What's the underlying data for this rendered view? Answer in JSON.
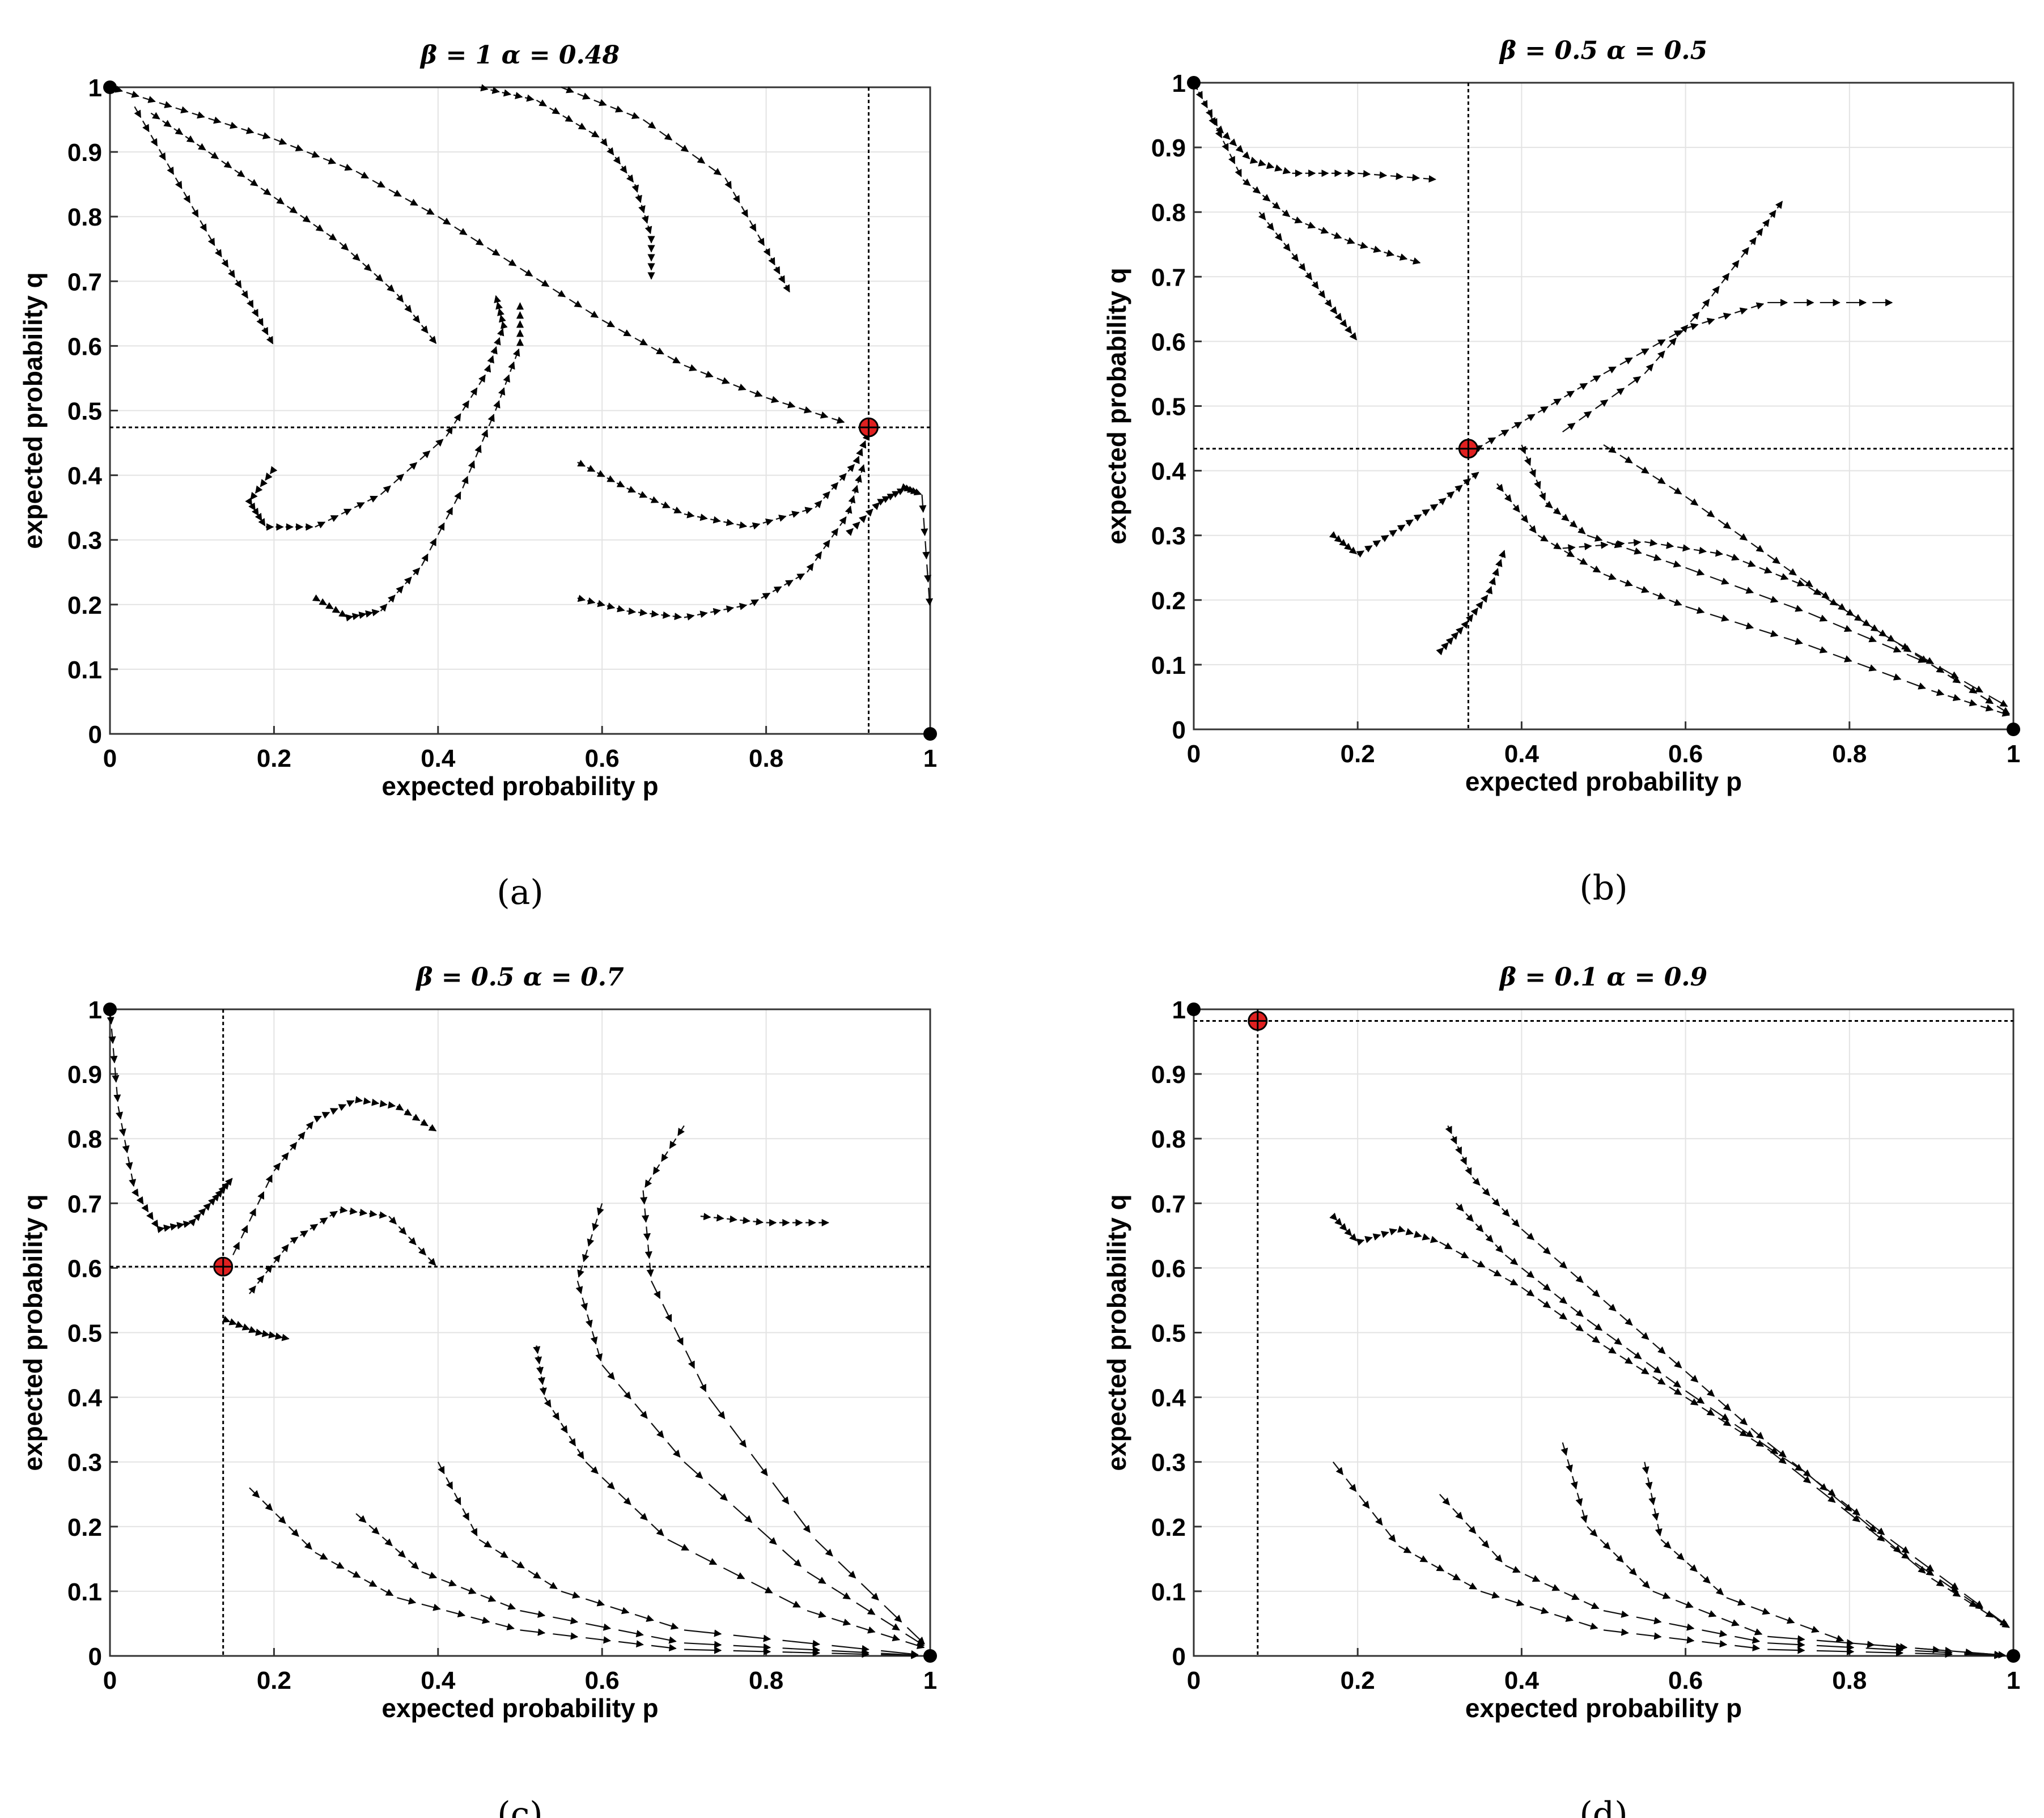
{
  "figure": {
    "panels_note": "four phase-portrait vector field panels"
  },
  "chart_data": [
    {
      "type": "scatter",
      "panel": "a",
      "title": "β = 1 α = 0.48",
      "xlabel": "expected probability p",
      "ylabel": "expected probability q",
      "xlim": [
        0,
        1
      ],
      "ylim": [
        0,
        1
      ],
      "xticks": [
        "0",
        "0.2",
        "0.4",
        "0.6",
        "0.8",
        "1"
      ],
      "yticks": [
        "0",
        "0.1",
        "0.2",
        "0.3",
        "0.4",
        "0.5",
        "0.6",
        "0.7",
        "0.8",
        "0.9",
        "1"
      ],
      "grid": true,
      "caption": "(a)",
      "equilibrium": {
        "p": 0.925,
        "q": 0.474
      },
      "stable_points": [
        {
          "p": 0,
          "q": 1
        },
        {
          "p": 1,
          "q": 0
        }
      ],
      "trajectories": [
        [
          [
            0.0,
            1.0
          ],
          [
            0.1,
            0.96
          ],
          [
            0.2,
            0.92
          ],
          [
            0.3,
            0.87
          ],
          [
            0.4,
            0.8
          ],
          [
            0.5,
            0.72
          ],
          [
            0.6,
            0.64
          ],
          [
            0.7,
            0.57
          ],
          [
            0.8,
            0.52
          ],
          [
            0.9,
            0.48
          ]
        ],
        [
          [
            0.03,
            0.97
          ],
          [
            0.08,
            0.86
          ],
          [
            0.13,
            0.75
          ],
          [
            0.17,
            0.67
          ],
          [
            0.2,
            0.6
          ]
        ],
        [
          [
            0.05,
            0.96
          ],
          [
            0.12,
            0.9
          ],
          [
            0.2,
            0.83
          ],
          [
            0.28,
            0.76
          ],
          [
            0.35,
            0.68
          ],
          [
            0.4,
            0.6
          ]
        ],
        [
          [
            0.45,
            1.0
          ],
          [
            0.52,
            0.98
          ],
          [
            0.6,
            0.92
          ],
          [
            0.64,
            0.85
          ],
          [
            0.66,
            0.77
          ],
          [
            0.66,
            0.7
          ]
        ],
        [
          [
            0.55,
            1.0
          ],
          [
            0.65,
            0.95
          ],
          [
            0.75,
            0.86
          ],
          [
            0.8,
            0.75
          ],
          [
            0.83,
            0.68
          ]
        ],
        [
          [
            0.2,
            0.41
          ],
          [
            0.17,
            0.36
          ],
          [
            0.19,
            0.32
          ],
          [
            0.25,
            0.32
          ],
          [
            0.33,
            0.37
          ],
          [
            0.41,
            0.46
          ],
          [
            0.46,
            0.56
          ],
          [
            0.48,
            0.63
          ],
          [
            0.47,
            0.68
          ]
        ],
        [
          [
            0.25,
            0.21
          ],
          [
            0.29,
            0.18
          ],
          [
            0.33,
            0.19
          ],
          [
            0.38,
            0.26
          ],
          [
            0.43,
            0.38
          ],
          [
            0.47,
            0.5
          ],
          [
            0.5,
            0.6
          ],
          [
            0.5,
            0.67
          ]
        ],
        [
          [
            0.57,
            0.42
          ],
          [
            0.63,
            0.38
          ],
          [
            0.7,
            0.34
          ],
          [
            0.78,
            0.32
          ],
          [
            0.86,
            0.35
          ],
          [
            0.91,
            0.42
          ],
          [
            0.93,
            0.48
          ]
        ],
        [
          [
            0.57,
            0.21
          ],
          [
            0.63,
            0.19
          ],
          [
            0.7,
            0.18
          ],
          [
            0.78,
            0.2
          ],
          [
            0.85,
            0.25
          ],
          [
            0.9,
            0.34
          ],
          [
            0.92,
            0.42
          ]
        ],
        [
          [
            0.9,
            0.31
          ],
          [
            0.94,
            0.36
          ],
          [
            0.97,
            0.38
          ],
          [
            0.99,
            0.37
          ],
          [
            1.0,
            0.19
          ]
        ]
      ]
    },
    {
      "type": "scatter",
      "panel": "b",
      "title": "β = 0.5 α = 0.5",
      "xlabel": "expected probability p",
      "ylabel": "expected probability q",
      "xlim": [
        0,
        1
      ],
      "ylim": [
        0,
        1
      ],
      "xticks": [
        "0",
        "0.2",
        "0.4",
        "0.6",
        "0.8",
        "1"
      ],
      "yticks": [
        "0",
        "0.1",
        "0.2",
        "0.3",
        "0.4",
        "0.5",
        "0.6",
        "0.7",
        "0.8",
        "0.9",
        "1"
      ],
      "grid": true,
      "caption": "(b)",
      "equilibrium": {
        "p": 0.335,
        "q": 0.434
      },
      "stable_points": [
        {
          "p": 0,
          "q": 1
        },
        {
          "p": 1,
          "q": 0
        }
      ],
      "trajectories": [
        [
          [
            0.0,
            1.0
          ],
          [
            0.03,
            0.93
          ],
          [
            0.07,
            0.88
          ],
          [
            0.12,
            0.86
          ],
          [
            0.2,
            0.86
          ],
          [
            0.3,
            0.85
          ]
        ],
        [
          [
            0.02,
            0.95
          ],
          [
            0.06,
            0.85
          ],
          [
            0.12,
            0.79
          ],
          [
            0.2,
            0.75
          ],
          [
            0.28,
            0.72
          ]
        ],
        [
          [
            0.08,
            0.8
          ],
          [
            0.13,
            0.72
          ],
          [
            0.17,
            0.65
          ],
          [
            0.2,
            0.6
          ]
        ],
        [
          [
            0.4,
            0.44
          ],
          [
            0.43,
            0.35
          ],
          [
            0.48,
            0.3
          ],
          [
            0.6,
            0.25
          ],
          [
            0.75,
            0.18
          ],
          [
            0.9,
            0.1
          ],
          [
            1.0,
            0.02
          ]
        ],
        [
          [
            0.5,
            0.44
          ],
          [
            0.6,
            0.36
          ],
          [
            0.7,
            0.27
          ],
          [
            0.8,
            0.18
          ],
          [
            0.9,
            0.1
          ],
          [
            1.0,
            0.02
          ]
        ],
        [
          [
            0.45,
            0.28
          ],
          [
            0.55,
            0.29
          ],
          [
            0.65,
            0.27
          ],
          [
            0.75,
            0.22
          ],
          [
            0.85,
            0.14
          ],
          [
            1.0,
            0.03
          ]
        ],
        [
          [
            0.37,
            0.38
          ],
          [
            0.42,
            0.3
          ],
          [
            0.5,
            0.24
          ],
          [
            0.6,
            0.19
          ],
          [
            0.75,
            0.13
          ],
          [
            0.9,
            0.06
          ],
          [
            1.0,
            0.02
          ]
        ],
        [
          [
            0.34,
            0.43
          ],
          [
            0.42,
            0.49
          ],
          [
            0.5,
            0.55
          ],
          [
            0.6,
            0.62
          ],
          [
            0.7,
            0.66
          ],
          [
            0.86,
            0.66
          ]
        ],
        [
          [
            0.45,
            0.46
          ],
          [
            0.55,
            0.55
          ],
          [
            0.62,
            0.65
          ],
          [
            0.68,
            0.75
          ],
          [
            0.72,
            0.82
          ]
        ],
        [
          [
            0.17,
            0.3
          ],
          [
            0.2,
            0.27
          ],
          [
            0.25,
            0.31
          ],
          [
            0.3,
            0.35
          ],
          [
            0.35,
            0.4
          ]
        ],
        [
          [
            0.3,
            0.12
          ],
          [
            0.33,
            0.16
          ],
          [
            0.36,
            0.21
          ],
          [
            0.38,
            0.28
          ]
        ]
      ]
    },
    {
      "type": "scatter",
      "panel": "c",
      "title": "β = 0.5 α = 0.7",
      "xlabel": "expected probability p",
      "ylabel": "expected probability q",
      "xlim": [
        0,
        1
      ],
      "ylim": [
        0,
        1
      ],
      "xticks": [
        "0",
        "0.2",
        "0.4",
        "0.6",
        "0.8",
        "1"
      ],
      "yticks": [
        "0",
        "0.1",
        "0.2",
        "0.3",
        "0.4",
        "0.5",
        "0.6",
        "0.7",
        "0.8",
        "0.9",
        "1"
      ],
      "grid": true,
      "caption": "(c)",
      "equilibrium": {
        "p": 0.138,
        "q": 0.602
      },
      "stable_points": [
        {
          "p": 0,
          "q": 1
        },
        {
          "p": 1,
          "q": 0
        }
      ],
      "trajectories": [
        [
          [
            0.0,
            1.0
          ],
          [
            0.01,
            0.85
          ],
          [
            0.03,
            0.72
          ],
          [
            0.06,
            0.66
          ],
          [
            0.1,
            0.67
          ],
          [
            0.13,
            0.71
          ],
          [
            0.15,
            0.74
          ]
        ],
        [
          [
            0.15,
            0.62
          ],
          [
            0.2,
            0.75
          ],
          [
            0.25,
            0.83
          ],
          [
            0.3,
            0.86
          ],
          [
            0.35,
            0.85
          ],
          [
            0.4,
            0.81
          ]
        ],
        [
          [
            0.17,
            0.56
          ],
          [
            0.22,
            0.64
          ],
          [
            0.28,
            0.69
          ],
          [
            0.34,
            0.68
          ],
          [
            0.4,
            0.6
          ]
        ],
        [
          [
            0.14,
            0.52
          ],
          [
            0.18,
            0.5
          ],
          [
            0.22,
            0.49
          ]
        ],
        [
          [
            0.17,
            0.26
          ],
          [
            0.25,
            0.16
          ],
          [
            0.35,
            0.09
          ],
          [
            0.5,
            0.04
          ],
          [
            0.7,
            0.01
          ],
          [
            1.0,
            0.0
          ]
        ],
        [
          [
            0.3,
            0.22
          ],
          [
            0.38,
            0.13
          ],
          [
            0.5,
            0.07
          ],
          [
            0.7,
            0.02
          ],
          [
            1.0,
            0.0
          ]
        ],
        [
          [
            0.4,
            0.3
          ],
          [
            0.45,
            0.18
          ],
          [
            0.55,
            0.1
          ],
          [
            0.7,
            0.04
          ],
          [
            1.0,
            0.0
          ]
        ],
        [
          [
            0.52,
            0.48
          ],
          [
            0.53,
            0.4
          ],
          [
            0.58,
            0.3
          ],
          [
            0.68,
            0.18
          ],
          [
            0.85,
            0.07
          ],
          [
            1.0,
            0.01
          ]
        ],
        [
          [
            0.6,
            0.7
          ],
          [
            0.57,
            0.58
          ],
          [
            0.6,
            0.45
          ],
          [
            0.7,
            0.3
          ],
          [
            0.85,
            0.13
          ],
          [
            1.0,
            0.01
          ]
        ],
        [
          [
            0.7,
            0.82
          ],
          [
            0.65,
            0.72
          ],
          [
            0.66,
            0.58
          ],
          [
            0.73,
            0.4
          ],
          [
            0.86,
            0.18
          ],
          [
            1.0,
            0.01
          ]
        ],
        [
          [
            0.72,
            0.68
          ],
          [
            0.8,
            0.67
          ],
          [
            0.88,
            0.67
          ]
        ]
      ]
    },
    {
      "type": "scatter",
      "panel": "d",
      "title": "β = 0.1 α = 0.9",
      "xlabel": "expected probability p",
      "ylabel": "expected probability q",
      "xlim": [
        0,
        1
      ],
      "ylim": [
        0,
        1
      ],
      "xticks": [
        "0",
        "0.2",
        "0.4",
        "0.6",
        "0.8",
        "1"
      ],
      "yticks": [
        "0",
        "0.1",
        "0.2",
        "0.3",
        "0.4",
        "0.5",
        "0.6",
        "0.7",
        "0.8",
        "0.9",
        "1"
      ],
      "grid": true,
      "caption": "(d)",
      "equilibrium": {
        "p": 0.078,
        "q": 0.982
      },
      "stable_points": [
        {
          "p": 0,
          "q": 1
        },
        {
          "p": 1,
          "q": 0
        }
      ],
      "trajectories": [
        [
          [
            0.17,
            0.68
          ],
          [
            0.2,
            0.64
          ],
          [
            0.25,
            0.66
          ],
          [
            0.3,
            0.64
          ],
          [
            0.4,
            0.57
          ],
          [
            0.5,
            0.48
          ],
          [
            0.6,
            0.4
          ],
          [
            0.7,
            0.32
          ],
          [
            0.85,
            0.17
          ],
          [
            1.0,
            0.04
          ]
        ],
        [
          [
            0.31,
            0.82
          ],
          [
            0.34,
            0.74
          ],
          [
            0.4,
            0.66
          ],
          [
            0.5,
            0.55
          ],
          [
            0.6,
            0.44
          ],
          [
            0.7,
            0.33
          ],
          [
            0.85,
            0.18
          ],
          [
            1.0,
            0.04
          ]
        ],
        [
          [
            0.32,
            0.7
          ],
          [
            0.38,
            0.62
          ],
          [
            0.48,
            0.52
          ],
          [
            0.6,
            0.41
          ],
          [
            0.75,
            0.28
          ],
          [
            0.9,
            0.12
          ],
          [
            1.0,
            0.04
          ]
        ],
        [
          [
            0.17,
            0.3
          ],
          [
            0.25,
            0.17
          ],
          [
            0.35,
            0.1
          ],
          [
            0.5,
            0.04
          ],
          [
            0.7,
            0.01
          ],
          [
            1.0,
            0.0
          ]
        ],
        [
          [
            0.3,
            0.25
          ],
          [
            0.38,
            0.14
          ],
          [
            0.5,
            0.07
          ],
          [
            0.7,
            0.02
          ],
          [
            1.0,
            0.0
          ]
        ],
        [
          [
            0.45,
            0.33
          ],
          [
            0.48,
            0.2
          ],
          [
            0.56,
            0.1
          ],
          [
            0.7,
            0.03
          ],
          [
            1.0,
            0.0
          ]
        ],
        [
          [
            0.55,
            0.3
          ],
          [
            0.57,
            0.18
          ],
          [
            0.65,
            0.09
          ],
          [
            0.8,
            0.02
          ],
          [
            1.0,
            0.0
          ]
        ]
      ]
    }
  ]
}
